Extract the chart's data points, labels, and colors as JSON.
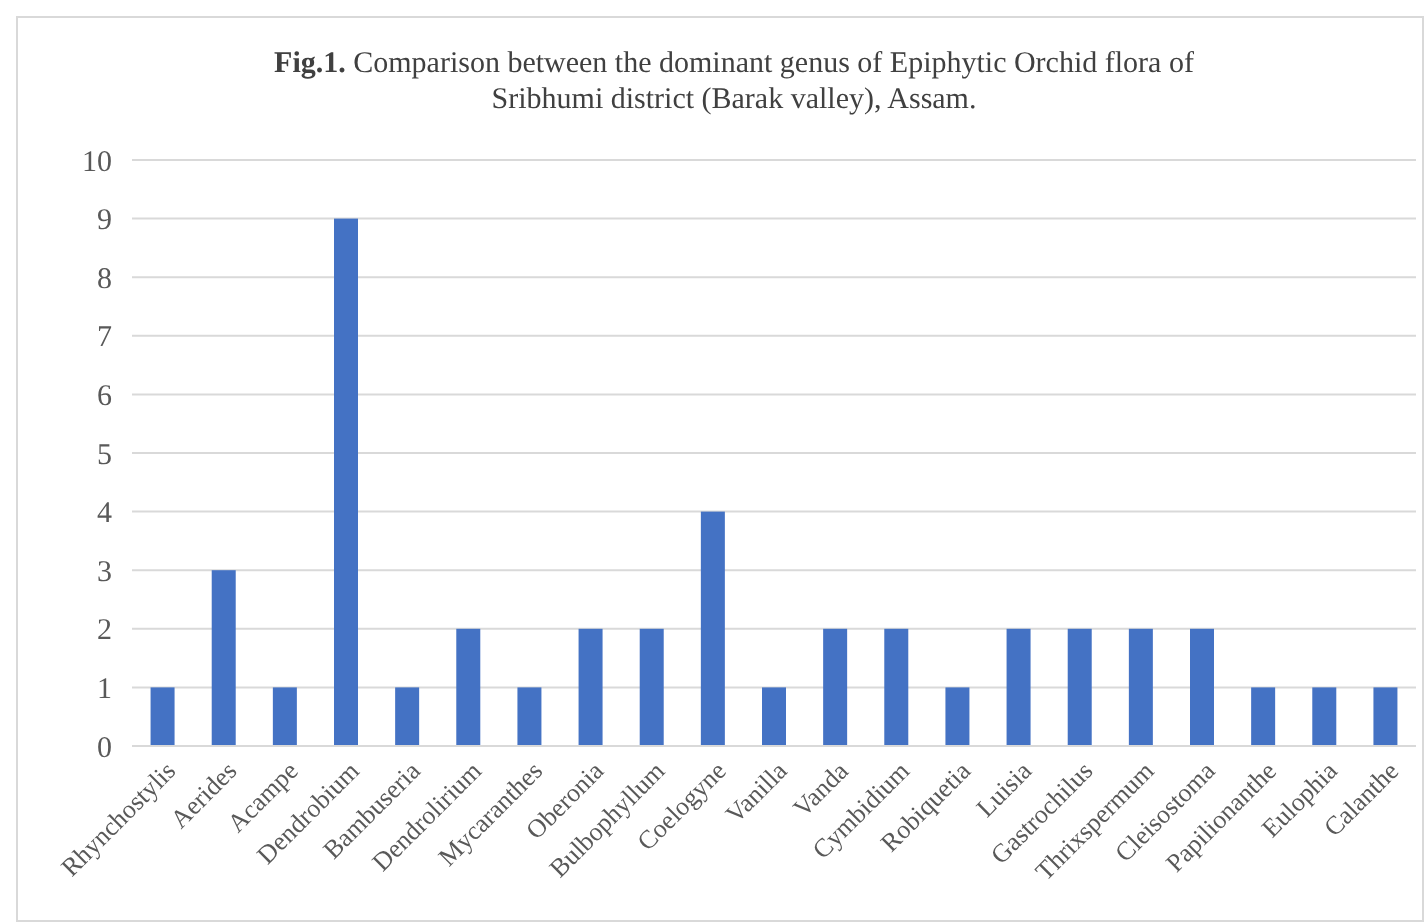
{
  "chart_data": {
    "type": "bar",
    "title": "Fig.1. Comparison between the dominant genus of Epiphytic Orchid flora of Sribhumi district (Barak valley), Assam.",
    "categories": [
      "Rhynchostylis",
      "Aerides",
      "Acampe",
      "Dendrobium",
      "Bambuseria",
      "Dendrolirium",
      "Mycaranthes",
      "Oberonia",
      "Bulbophyllum",
      "Coelogyne",
      "Vanilla",
      "Vanda",
      "Cymbidium",
      "Robiquetia",
      "Luisia",
      "Gastrochilus",
      "Thrixspermum",
      "Cleisostoma",
      "Papilionanthe",
      "Eulophia",
      "Calanthe"
    ],
    "values": [
      1,
      3,
      1,
      9,
      1,
      2,
      1,
      2,
      2,
      4,
      1,
      2,
      2,
      1,
      2,
      2,
      2,
      2,
      1,
      1,
      1
    ],
    "color": "#4472c4",
    "ylim": [
      0,
      10
    ],
    "yticks": [
      0,
      1,
      2,
      3,
      4,
      5,
      6,
      7,
      8,
      9,
      10
    ],
    "grid": "y"
  }
}
